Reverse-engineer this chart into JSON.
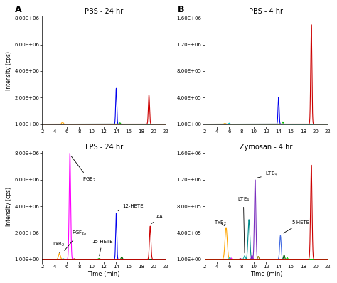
{
  "panels": [
    {
      "title": "PBS - 24 hr",
      "ylim_max": 8000000.0,
      "ytick_vals": [
        0,
        2000000.0,
        4000000.0,
        6000000.0,
        8000000.0
      ],
      "ytick_labels": [
        "1.00E+00",
        "2.00E+06",
        "4.00E+06",
        "6.00E+06",
        "8.00E+06"
      ],
      "xlim": [
        2,
        22
      ],
      "xticks": [
        2,
        4,
        6,
        8,
        10,
        12,
        14,
        16,
        18,
        20,
        22
      ],
      "peaks": [
        {
          "x": 5.3,
          "height": 150000.0,
          "color": "#FFA500",
          "sigma": 0.12
        },
        {
          "x": 14.0,
          "height": 2700000.0,
          "color": "#0000EE",
          "sigma": 0.09
        },
        {
          "x": 14.6,
          "height": 100000.0,
          "color": "#00BB00",
          "sigma": 0.08
        },
        {
          "x": 19.3,
          "height": 2200000.0,
          "color": "#CC0000",
          "sigma": 0.1
        }
      ],
      "annotations": [],
      "panel_label": "A",
      "row": 0,
      "col": 0
    },
    {
      "title": "PBS - 4 hr",
      "ylim_max": 1600000.0,
      "ytick_vals": [
        0,
        400000.0,
        800000.0,
        1200000.0,
        1600000.0
      ],
      "ytick_labels": [
        "1.00E+00",
        "4.00E+05",
        "8.00E+05",
        "1.20E+06",
        "1.60E+06"
      ],
      "xlim": [
        2,
        22
      ],
      "xticks": [
        2,
        4,
        6,
        8,
        10,
        12,
        14,
        16,
        18,
        20,
        22
      ],
      "peaks": [
        {
          "x": 5.3,
          "height": 12000.0,
          "color": "#FFA500",
          "sigma": 0.12
        },
        {
          "x": 6.0,
          "height": 15000.0,
          "color": "#00CCCC",
          "sigma": 0.1
        },
        {
          "x": 14.0,
          "height": 400000.0,
          "color": "#0000EE",
          "sigma": 0.09
        },
        {
          "x": 14.7,
          "height": 35000.0,
          "color": "#00BB00",
          "sigma": 0.08
        },
        {
          "x": 19.3,
          "height": 1500000.0,
          "color": "#CC0000",
          "sigma": 0.1
        }
      ],
      "annotations": [],
      "panel_label": "B",
      "row": 0,
      "col": 1
    },
    {
      "title": "LPS - 24 hr",
      "ylim_max": 8000000.0,
      "ytick_vals": [
        0,
        2000000.0,
        4000000.0,
        6000000.0,
        8000000.0
      ],
      "ytick_labels": [
        "1.00E+00",
        "2.00E+06",
        "4.00E+06",
        "6.00E+06",
        "8.00E+06"
      ],
      "xlim": [
        2,
        22
      ],
      "xticks": [
        2,
        4,
        6,
        8,
        10,
        12,
        14,
        16,
        18,
        20,
        22
      ],
      "peaks": [
        {
          "x": 4.8,
          "height": 450000.0,
          "color": "#FFA500",
          "sigma": 0.15
        },
        {
          "x": 5.4,
          "height": 50000.0,
          "color": "#00CCCC",
          "sigma": 0.1
        },
        {
          "x": 6.5,
          "height": 8000000.0,
          "color": "#FF00FF",
          "sigma": 0.12
        },
        {
          "x": 7.2,
          "height": 40000.0,
          "color": "#8B0000",
          "sigma": 0.1
        },
        {
          "x": 11.2,
          "height": 60000.0,
          "color": "#00AA00",
          "sigma": 0.12
        },
        {
          "x": 14.0,
          "height": 3500000.0,
          "color": "#0000EE",
          "sigma": 0.09
        },
        {
          "x": 14.9,
          "height": 180000.0,
          "color": "#006400",
          "sigma": 0.1
        },
        {
          "x": 19.5,
          "height": 2500000.0,
          "color": "#CC0000",
          "sigma": 0.12
        }
      ],
      "annotations": [
        {
          "text": "PGE$_2$",
          "xt": 8.5,
          "yt": 6000000.0,
          "xa": 6.5,
          "ya": 7900000.0,
          "ha": "left"
        },
        {
          "text": "PGF$_{2a}$",
          "xt": 6.8,
          "yt": 2000000.0,
          "xa": 5.4,
          "ya": 550000.0,
          "ha": "left"
        },
        {
          "text": "TxB$_2$",
          "xt": 3.6,
          "yt": 1100000.0,
          "xa": 4.8,
          "ya": 500000.0,
          "ha": "left"
        },
        {
          "text": "15-HETE",
          "xt": 10.0,
          "yt": 1300000.0,
          "xa": 11.2,
          "ya": 120000.0,
          "ha": "left"
        },
        {
          "text": "12-HETE",
          "xt": 15.0,
          "yt": 4000000.0,
          "xa": 14.0,
          "ya": 3600000.0,
          "ha": "left"
        },
        {
          "text": "AA",
          "xt": 20.5,
          "yt": 3200000.0,
          "xa": 19.5,
          "ya": 2600000.0,
          "ha": "left"
        }
      ],
      "panel_label": "",
      "row": 1,
      "col": 0
    },
    {
      "title": "Zymosan - 4 hr",
      "ylim_max": 1600000.0,
      "ytick_vals": [
        0,
        400000.0,
        800000.0,
        1200000.0,
        1600000.0
      ],
      "ytick_labels": [
        "1.00E+00",
        "4.00E+05",
        "8.00E+05",
        "1.20E+06",
        "1.60E+06"
      ],
      "xlim": [
        2,
        22
      ],
      "xticks": [
        2,
        4,
        6,
        8,
        10,
        12,
        14,
        16,
        18,
        20,
        22
      ],
      "peaks": [
        {
          "x": 5.5,
          "height": 480000.0,
          "color": "#FFA500",
          "sigma": 0.18
        },
        {
          "x": 6.1,
          "height": 30000.0,
          "color": "#00CCCC",
          "sigma": 0.1
        },
        {
          "x": 6.4,
          "height": 20000.0,
          "color": "#FF00FF",
          "sigma": 0.09
        },
        {
          "x": 7.8,
          "height": 12000.0,
          "color": "#8B008B",
          "sigma": 0.09
        },
        {
          "x": 8.5,
          "height": 55000.0,
          "color": "#20B2AA",
          "sigma": 0.12
        },
        {
          "x": 9.2,
          "height": 600000.0,
          "color": "#008B8B",
          "sigma": 0.15
        },
        {
          "x": 9.7,
          "height": 60000.0,
          "color": "#9400D3",
          "sigma": 0.1
        },
        {
          "x": 10.2,
          "height": 1200000.0,
          "color": "#7B2FBE",
          "sigma": 0.12
        },
        {
          "x": 10.7,
          "height": 45000.0,
          "color": "#808000",
          "sigma": 0.1
        },
        {
          "x": 14.3,
          "height": 360000.0,
          "color": "#4169E1",
          "sigma": 0.12
        },
        {
          "x": 14.9,
          "height": 70000.0,
          "color": "#006400",
          "sigma": 0.09
        },
        {
          "x": 15.4,
          "height": 25000.0,
          "color": "#00CC00",
          "sigma": 0.08
        },
        {
          "x": 19.3,
          "height": 1420000.0,
          "color": "#CC0000",
          "sigma": 0.12
        }
      ],
      "annotations": [
        {
          "text": "TxB$_2$",
          "xt": 3.5,
          "yt": 550000.0,
          "xa": 5.5,
          "ya": 490000.0,
          "ha": "left"
        },
        {
          "text": "LTE$_4$",
          "xt": 7.3,
          "yt": 900000.0,
          "xa": 8.5,
          "ya": 65000.0,
          "ha": "left"
        },
        {
          "text": "LTB$_4$",
          "xt": 11.8,
          "yt": 1280000.0,
          "xa": 10.2,
          "ya": 1220000.0,
          "ha": "left"
        },
        {
          "text": "5-HETE",
          "xt": 16.2,
          "yt": 550000.0,
          "xa": 14.5,
          "ya": 380000.0,
          "ha": "left"
        }
      ],
      "panel_label": "",
      "row": 1,
      "col": 1
    }
  ],
  "xlabel": "Time (min)",
  "ylabel": "Intensity (cps)",
  "bg_color": "#FFFFFF"
}
